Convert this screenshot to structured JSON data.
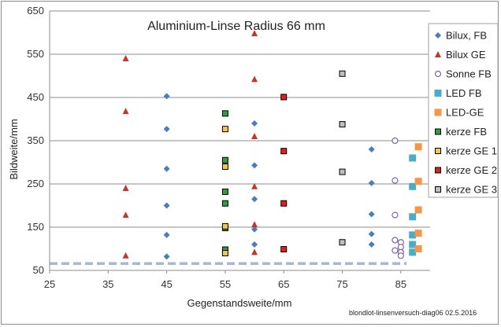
{
  "chart_data": {
    "type": "scatter",
    "title": "Aluminium-Linse Radius 66 mm",
    "xlabel": "Gegenstandsweite/mm",
    "ylabel": "Bildweite/mm",
    "xlim": [
      25,
      90
    ],
    "ylim": [
      50,
      650
    ],
    "xticks": [
      "25",
      "35",
      "45",
      "55",
      "65",
      "75",
      "85"
    ],
    "yticks": [
      "50",
      "150",
      "250",
      "350",
      "450",
      "550",
      "650"
    ],
    "grid": "horizontal",
    "legend_position": "right",
    "note": "blondlot-linsenversuch-diag06 02.5.2016",
    "reference_line": {
      "y": 66,
      "x_from": 25,
      "x_to": 86,
      "color": "#a6b8d2"
    },
    "series": [
      {
        "name": "Bilux, FB",
        "marker": "diamond",
        "color": "#4a7ebb",
        "points": [
          [
            45,
            453
          ],
          [
            45,
            377
          ],
          [
            45,
            285
          ],
          [
            45,
            200
          ],
          [
            45,
            132
          ],
          [
            45,
            82
          ],
          [
            60,
            390
          ],
          [
            60,
            293
          ],
          [
            60,
            215
          ],
          [
            60,
            145
          ],
          [
            60,
            110
          ],
          [
            80,
            330
          ],
          [
            80,
            252
          ],
          [
            80,
            180
          ],
          [
            80,
            134
          ],
          [
            80,
            110
          ]
        ]
      },
      {
        "name": "Bilux GE",
        "marker": "triangle",
        "color": "#c0392b",
        "points": [
          [
            38,
            540
          ],
          [
            38,
            418
          ],
          [
            38,
            240
          ],
          [
            38,
            178
          ],
          [
            38,
            84
          ],
          [
            60,
            598
          ],
          [
            60,
            492
          ],
          [
            60,
            360
          ],
          [
            60,
            244
          ],
          [
            60,
            156
          ],
          [
            60,
            92
          ]
        ]
      },
      {
        "name": "Sonne FB",
        "marker": "circle-open",
        "color": "#8064a2",
        "points": [
          [
            84,
            350
          ],
          [
            84,
            258
          ],
          [
            84,
            178
          ],
          [
            84,
            120
          ],
          [
            84,
            96
          ],
          [
            85,
            115
          ],
          [
            85,
            104
          ],
          [
            85,
            92
          ],
          [
            85,
            84
          ]
        ]
      },
      {
        "name": "LED FB",
        "marker": "square",
        "color": "#4bacc6",
        "points": [
          [
            87,
            310
          ],
          [
            87,
            244
          ],
          [
            87,
            174
          ],
          [
            87,
            132
          ],
          [
            87,
            110
          ],
          [
            87,
            92
          ]
        ]
      },
      {
        "name": "LED-GE",
        "marker": "square",
        "color": "#f79646",
        "points": [
          [
            88,
            336
          ],
          [
            88,
            256
          ],
          [
            88,
            190
          ],
          [
            88,
            136
          ],
          [
            88,
            100
          ]
        ]
      },
      {
        "name": "kerze FB",
        "marker": "square-outlined",
        "color": "#2e9e3e",
        "points": [
          [
            55,
            413
          ],
          [
            55,
            305
          ],
          [
            55,
            232
          ],
          [
            55,
            205
          ],
          [
            55,
            148
          ],
          [
            55,
            98
          ]
        ]
      },
      {
        "name": "kerze GE 1",
        "marker": "square-outlined",
        "color": "#f7c646",
        "points": [
          [
            55,
            377
          ],
          [
            55,
            290
          ],
          [
            55,
            152
          ],
          [
            55,
            90
          ]
        ]
      },
      {
        "name": "kerze GE 2",
        "marker": "square-outlined",
        "color": "#e02020",
        "points": [
          [
            65,
            451
          ],
          [
            65,
            326
          ],
          [
            65,
            205
          ],
          [
            65,
            99
          ]
        ]
      },
      {
        "name": "kerze GE 3",
        "marker": "square-outlined",
        "color": "#bfbfbf",
        "points": [
          [
            75,
            505
          ],
          [
            75,
            388
          ],
          [
            75,
            278
          ],
          [
            75,
            115
          ]
        ]
      }
    ]
  }
}
